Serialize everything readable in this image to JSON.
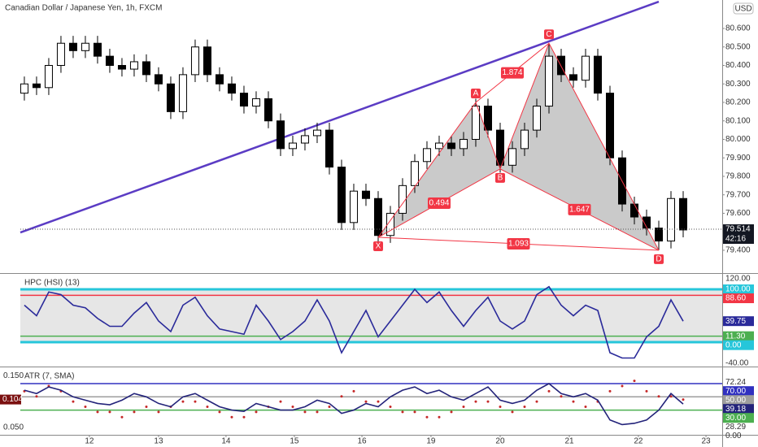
{
  "chart_data": [
    {
      "type": "candlestick",
      "title": "Canadian Dollar / Japanese Yen, 1h, FXCM",
      "currency": "USD",
      "up_color": "#ffffff",
      "down_color": "#000000",
      "xlim": [
        -0.33,
        57.2
      ],
      "xticks": [
        {
          "value": 5.33,
          "label": "12"
        },
        {
          "value": 11,
          "label": "13"
        },
        {
          "value": 16.53,
          "label": "14"
        },
        {
          "value": 22.13,
          "label": "15"
        },
        {
          "value": 27.67,
          "label": "16"
        },
        {
          "value": 33.33,
          "label": "19"
        },
        {
          "value": 39,
          "label": "20"
        },
        {
          "value": 44.67,
          "label": "21"
        },
        {
          "value": 50.33,
          "label": "22"
        },
        {
          "value": 55.87,
          "label": "23"
        }
      ],
      "ylim": [
        79.281,
        80.754
      ],
      "yticks": [
        {
          "value": 80.6,
          "label": "80.600"
        },
        {
          "value": 80.5,
          "label": "80.500"
        },
        {
          "value": 80.4,
          "label": "80.400"
        },
        {
          "value": 80.3,
          "label": "80.300"
        },
        {
          "value": 80.2,
          "label": "80.200"
        },
        {
          "value": 80.1,
          "label": "80.100"
        },
        {
          "value": 80.0,
          "label": "80.000"
        },
        {
          "value": 79.9,
          "label": "79.900"
        },
        {
          "value": 79.8,
          "label": "79.800"
        },
        {
          "value": 79.7,
          "label": "79.700"
        },
        {
          "value": 79.6,
          "label": "79.600"
        },
        {
          "value": 79.4,
          "label": "79.400"
        }
      ],
      "candles": [
        [
          80.25,
          80.34,
          80.21,
          80.3
        ],
        [
          80.3,
          80.34,
          80.24,
          80.28
        ],
        [
          80.28,
          80.44,
          80.24,
          80.4
        ],
        [
          80.4,
          80.56,
          80.36,
          80.52
        ],
        [
          80.52,
          80.56,
          80.44,
          80.48
        ],
        [
          80.48,
          80.56,
          80.44,
          80.52
        ],
        [
          80.52,
          80.56,
          80.41,
          80.45
        ],
        [
          80.45,
          80.49,
          80.36,
          80.4
        ],
        [
          80.4,
          80.44,
          80.34,
          80.38
        ],
        [
          80.38,
          80.46,
          80.34,
          80.42
        ],
        [
          80.42,
          80.46,
          80.31,
          80.35
        ],
        [
          80.35,
          80.39,
          80.26,
          80.3
        ],
        [
          80.3,
          80.34,
          80.11,
          80.15
        ],
        [
          80.15,
          80.39,
          80.11,
          80.35
        ],
        [
          80.35,
          80.54,
          80.31,
          80.5
        ],
        [
          80.5,
          80.54,
          80.31,
          80.35
        ],
        [
          80.35,
          80.39,
          80.26,
          80.3
        ],
        [
          80.3,
          80.34,
          80.21,
          80.25
        ],
        [
          80.25,
          80.29,
          80.14,
          80.18
        ],
        [
          80.18,
          80.26,
          80.14,
          80.22
        ],
        [
          80.22,
          80.26,
          80.06,
          80.1
        ],
        [
          80.1,
          80.14,
          79.91,
          79.95
        ],
        [
          79.95,
          80.02,
          79.91,
          79.98
        ],
        [
          79.98,
          80.06,
          79.94,
          80.02
        ],
        [
          80.02,
          80.09,
          79.98,
          80.05
        ],
        [
          80.05,
          80.09,
          79.81,
          79.85
        ],
        [
          79.85,
          79.89,
          79.51,
          79.55
        ],
        [
          79.55,
          79.76,
          79.51,
          79.72
        ],
        [
          79.72,
          79.76,
          79.64,
          79.68
        ],
        [
          79.68,
          79.72,
          79.44,
          79.48
        ],
        [
          79.48,
          79.64,
          79.44,
          79.6
        ],
        [
          79.6,
          79.79,
          79.56,
          79.75
        ],
        [
          79.75,
          79.92,
          79.71,
          79.88
        ],
        [
          79.88,
          79.99,
          79.84,
          79.95
        ],
        [
          79.95,
          80.02,
          79.91,
          79.98
        ],
        [
          79.98,
          80.02,
          79.91,
          79.95
        ],
        [
          79.95,
          80.04,
          79.91,
          80.0
        ],
        [
          80.0,
          80.22,
          79.96,
          80.18
        ],
        [
          80.18,
          80.22,
          80.01,
          80.05
        ],
        [
          80.05,
          80.09,
          79.82,
          79.86
        ],
        [
          79.86,
          79.99,
          79.82,
          79.95
        ],
        [
          79.95,
          80.09,
          79.91,
          80.05
        ],
        [
          80.05,
          80.22,
          80.01,
          80.18
        ],
        [
          80.18,
          80.52,
          80.14,
          80.45
        ],
        [
          80.45,
          80.49,
          80.31,
          80.35
        ],
        [
          80.35,
          80.39,
          80.28,
          80.32
        ],
        [
          80.32,
          80.49,
          80.28,
          80.45
        ],
        [
          80.45,
          80.49,
          80.21,
          80.25
        ],
        [
          80.25,
          80.29,
          79.86,
          79.9
        ],
        [
          79.9,
          79.94,
          79.61,
          79.65
        ],
        [
          79.65,
          79.69,
          79.54,
          79.58
        ],
        [
          79.58,
          79.62,
          79.48,
          79.52
        ],
        [
          79.52,
          79.56,
          79.4,
          79.45
        ],
        [
          79.45,
          79.72,
          79.41,
          79.68
        ],
        [
          79.68,
          79.72,
          79.47,
          79.51
        ]
      ],
      "last_price": {
        "value": 79.514,
        "label": "79.514"
      },
      "countdown": "42:16",
      "trendline": {
        "color": "#5b3cc4",
        "x": [
          -0.33,
          52
        ],
        "y": [
          79.496,
          80.745
        ]
      },
      "pattern": {
        "color": "#f23645",
        "fill": "#9e9e9e",
        "points": [
          {
            "label": "X",
            "x": 29,
            "y": 79.47
          },
          {
            "label": "A",
            "x": 37,
            "y": 80.2
          },
          {
            "label": "B",
            "x": 39,
            "y": 79.84
          },
          {
            "label": "C",
            "x": 43,
            "y": 80.52
          },
          {
            "label": "D",
            "x": 52,
            "y": 79.4
          }
        ],
        "ratios": [
          {
            "label": "0.494",
            "from": 0,
            "to": 2
          },
          {
            "label": "1.874",
            "from": 1,
            "to": 3
          },
          {
            "label": "1.647",
            "from": 2,
            "to": 4
          },
          {
            "label": "1.093",
            "from": 0,
            "to": 4
          }
        ]
      }
    },
    {
      "type": "line",
      "title": "HPC (HSI) (13)",
      "ylim": [
        -44.6,
        127.7
      ],
      "yticks": [
        {
          "value": 120,
          "label": "120.00"
        },
        {
          "value": -40,
          "label": "-40.00"
        }
      ],
      "levels": [
        {
          "value": 100,
          "label": "100.00",
          "color": "#26c6da"
        },
        {
          "value": 88.6,
          "label": "88.60",
          "color": "#f23645"
        },
        {
          "value": 11.3,
          "label": "11.30",
          "color": "#4caf50"
        },
        {
          "value": 0,
          "label": "0.00",
          "color": "#26c6da"
        }
      ],
      "band": [
        0,
        100
      ],
      "band_color": "#e6e6e6",
      "series": [
        {
          "color": "#2a2a9a",
          "values": [
            70,
            50,
            95,
            90,
            70,
            65,
            45,
            30,
            30,
            55,
            75,
            40,
            20,
            70,
            85,
            50,
            25,
            20,
            15,
            70,
            40,
            5,
            20,
            40,
            80,
            40,
            -20,
            20,
            60,
            10,
            40,
            70,
            100,
            75,
            95,
            60,
            30,
            60,
            85,
            40,
            25,
            40,
            90,
            105,
            70,
            50,
            70,
            60,
            -20,
            -30,
            -30,
            10,
            30,
            80,
            39.75
          ],
          "last": {
            "value": 39.75,
            "label": "39.75"
          }
        }
      ]
    },
    {
      "type": "line",
      "title": "ATR (7, SMA)",
      "ylim": [
        0.036,
        0.166
      ],
      "yticks": [
        {
          "value": 0.15,
          "label": "0.150"
        },
        {
          "value": 0.05,
          "label": "0.050"
        }
      ],
      "y2lim": [
        -7.4,
        94.6
      ],
      "y2ticks": [
        {
          "value": 72.24,
          "label": "72.24"
        },
        {
          "value": 28.29,
          "label": "28.29"
        },
        {
          "value": 0,
          "label": "0.00"
        }
      ],
      "levels": [
        {
          "value": 70,
          "label": "70.00",
          "color": "#3030c0"
        },
        {
          "value": 50,
          "label": "50.00",
          "color": "#9e9e9e"
        },
        {
          "value": 30,
          "label": "30.00",
          "color": "#4caf50"
        }
      ],
      "series": [
        {
          "color": "#c62828",
          "style": "dots",
          "values": [
            0.12,
            0.11,
            0.13,
            0.12,
            0.1,
            0.09,
            0.08,
            0.08,
            0.07,
            0.08,
            0.09,
            0.08,
            0.09,
            0.1,
            0.1,
            0.09,
            0.08,
            0.07,
            0.07,
            0.08,
            0.09,
            0.1,
            0.09,
            0.08,
            0.08,
            0.09,
            0.11,
            0.12,
            0.1,
            0.1,
            0.09,
            0.08,
            0.08,
            0.07,
            0.07,
            0.08,
            0.09,
            0.1,
            0.1,
            0.09,
            0.08,
            0.09,
            0.1,
            0.12,
            0.11,
            0.1,
            0.09,
            0.1,
            0.12,
            0.13,
            0.14,
            0.12,
            0.11,
            0.11,
            0.104
          ],
          "last": {
            "value": 0.104,
            "label": "0.104"
          }
        },
        {
          "color": "#23237a",
          "axis": "y2",
          "values": [
            60,
            55,
            65,
            60,
            50,
            45,
            40,
            38,
            45,
            55,
            50,
            40,
            35,
            50,
            55,
            45,
            35,
            30,
            28,
            40,
            35,
            30,
            30,
            35,
            45,
            40,
            25,
            30,
            40,
            35,
            50,
            60,
            65,
            55,
            60,
            50,
            45,
            55,
            65,
            45,
            40,
            45,
            60,
            70,
            55,
            50,
            55,
            45,
            15,
            8,
            10,
            15,
            30,
            55,
            39.18
          ],
          "last": {
            "value": 39.18,
            "label": "39.18"
          }
        }
      ]
    }
  ]
}
